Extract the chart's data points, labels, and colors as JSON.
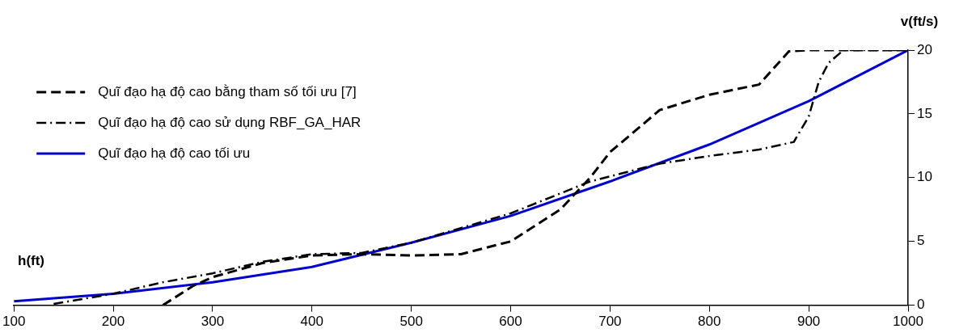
{
  "chart_data": {
    "type": "line",
    "xlabel": "h(ft)",
    "ylabel": "v(ft/s)",
    "xlim": [
      100,
      1000
    ],
    "xticks": [
      100,
      200,
      300,
      400,
      500,
      600,
      700,
      800,
      900,
      1000
    ],
    "ylim": [
      0,
      20
    ],
    "yticks": [
      0,
      5,
      10,
      15,
      20
    ],
    "grid": false,
    "legend": "top left",
    "marker": "none",
    "series": [
      {
        "name": "Quĩ đạo hạ độ cao bằng tham số tối ưu [7]",
        "color": "#000000",
        "line_style": "dashed",
        "x": [
          250,
          280,
          300,
          350,
          400,
          450,
          500,
          550,
          600,
          650,
          680,
          700,
          750,
          800,
          850,
          880,
          900,
          1000
        ],
        "values": [
          0,
          1.5,
          2.2,
          3.3,
          3.9,
          4.0,
          3.9,
          4.0,
          5.0,
          7.5,
          10,
          12,
          15.3,
          16.5,
          17.3,
          19.9,
          20,
          20
        ]
      },
      {
        "name": "Quĩ đạo hạ độ cao sử dụng RBF_GA_HAR",
        "color": "#000000",
        "line_style": "dashdot",
        "x": [
          140,
          200,
          250,
          300,
          350,
          400,
          450,
          500,
          600,
          680,
          750,
          800,
          850,
          885,
          900,
          910,
          920,
          935,
          1000
        ],
        "values": [
          0.1,
          0.9,
          1.8,
          2.5,
          3.4,
          4.0,
          4.1,
          4.9,
          7.2,
          9.7,
          11.1,
          11.7,
          12.2,
          12.8,
          14.8,
          17.5,
          19,
          20,
          20
        ]
      },
      {
        "name": "Quĩ đạo hạ độ cao tối ưu",
        "color": "#0000cc",
        "line_style": "solid",
        "x": [
          100,
          200,
          300,
          400,
          500,
          600,
          700,
          800,
          900,
          1000
        ],
        "values": [
          0.3,
          0.9,
          1.8,
          3.0,
          4.9,
          7.0,
          9.7,
          12.6,
          16.0,
          20
        ]
      }
    ]
  }
}
